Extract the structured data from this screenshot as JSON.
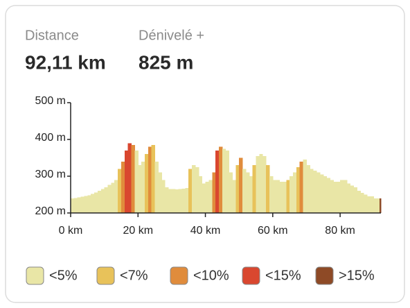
{
  "stats": [
    {
      "label": "Distance",
      "value": "92,11 km"
    },
    {
      "label": "Dénivelé +",
      "value": "825 m"
    }
  ],
  "chart_data": {
    "type": "elevation-profile",
    "x": [
      0,
      1,
      2,
      3,
      4,
      5,
      6,
      7,
      8,
      9,
      10,
      11,
      12,
      13,
      14,
      15,
      16,
      17,
      18,
      19,
      20,
      21,
      22,
      23,
      24,
      25,
      26,
      27,
      28,
      29,
      30,
      31,
      32,
      33,
      34,
      35,
      36,
      37,
      38,
      39,
      40,
      41,
      42,
      43,
      44,
      45,
      46,
      47,
      48,
      49,
      50,
      51,
      52,
      53,
      54,
      55,
      56,
      57,
      58,
      59,
      60,
      61,
      62,
      63,
      64,
      65,
      66,
      67,
      68,
      69,
      70,
      71,
      72,
      73,
      74,
      75,
      76,
      77,
      78,
      79,
      80,
      81,
      82,
      83,
      84,
      85,
      86,
      87,
      88,
      89,
      90,
      91,
      92.11
    ],
    "values": [
      240,
      241,
      242,
      244,
      246,
      248,
      252,
      256,
      260,
      265,
      270,
      276,
      282,
      290,
      320,
      340,
      370,
      390,
      385,
      370,
      330,
      340,
      360,
      380,
      385,
      340,
      310,
      290,
      270,
      265,
      265,
      264,
      265,
      266,
      268,
      320,
      330,
      325,
      300,
      280,
      285,
      290,
      310,
      370,
      380,
      375,
      370,
      310,
      290,
      330,
      350,
      320,
      310,
      300,
      330,
      355,
      360,
      355,
      330,
      300,
      290,
      290,
      285,
      285,
      290,
      300,
      310,
      325,
      340,
      345,
      330,
      320,
      315,
      310,
      305,
      300,
      295,
      290,
      285,
      285,
      290,
      290,
      280,
      275,
      270,
      260,
      255,
      250,
      245,
      245,
      240,
      240,
      240
    ],
    "grade_class": [
      0,
      0,
      0,
      0,
      0,
      0,
      0,
      0,
      0,
      0,
      0,
      0,
      0,
      0,
      1,
      2,
      3,
      3,
      2,
      0,
      0,
      0,
      1,
      2,
      1,
      0,
      0,
      0,
      0,
      0,
      0,
      0,
      0,
      0,
      0,
      1,
      0,
      0,
      0,
      0,
      0,
      0,
      2,
      3,
      2,
      0,
      0,
      0,
      0,
      1,
      2,
      0,
      0,
      0,
      1,
      0,
      0,
      0,
      1,
      0,
      0,
      0,
      0,
      0,
      1,
      0,
      0,
      1,
      2,
      0,
      0,
      0,
      0,
      0,
      0,
      0,
      0,
      0,
      0,
      0,
      0,
      0,
      0,
      0,
      0,
      0,
      0,
      0,
      0,
      0,
      0,
      0,
      4
    ],
    "legend": [
      {
        "label": "<5%",
        "color": "#e9e6a6"
      },
      {
        "label": "<7%",
        "color": "#e8c25a"
      },
      {
        "label": "<10%",
        "color": "#e08c3c"
      },
      {
        "label": "<15%",
        "color": "#d9472f"
      },
      {
        "label": ">15%",
        "color": "#8e4a26"
      }
    ],
    "xlim": [
      0,
      92.11
    ],
    "ylim": [
      200,
      500
    ],
    "xticks": [
      {
        "value": 0,
        "label": "0 km"
      },
      {
        "value": 20,
        "label": "20 km"
      },
      {
        "value": 40,
        "label": "40 km"
      },
      {
        "value": 60,
        "label": "60 km"
      },
      {
        "value": 80,
        "label": "80 km"
      }
    ],
    "yticks": [
      {
        "value": 200,
        "label": "200 m"
      },
      {
        "value": 300,
        "label": "300 m"
      },
      {
        "value": 400,
        "label": "400 m"
      },
      {
        "value": 500,
        "label": "500 m"
      }
    ]
  }
}
